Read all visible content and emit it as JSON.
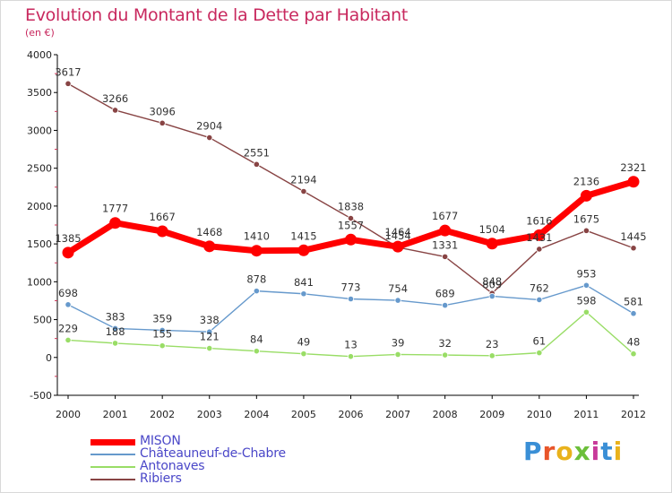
{
  "header": {
    "title": "Evolution du Montant de la Dette par Habitant",
    "subtitle": "(en €)"
  },
  "logo": {
    "text": "Proxiti",
    "letter_colors": [
      "#3a8fd6",
      "#e8552a",
      "#e9b21c",
      "#6cbf3a",
      "#c83a9a",
      "#3a8fd6",
      "#e9b21c"
    ]
  },
  "chart_data": {
    "type": "line",
    "title": "Evolution du Montant de la Dette par Habitant",
    "subtitle": "(en €)",
    "xlabel": "",
    "ylabel": "",
    "x": [
      "2000",
      "2001",
      "2002",
      "2003",
      "2004",
      "2005",
      "2006",
      "2007",
      "2008",
      "2009",
      "2010",
      "2011",
      "2012"
    ],
    "ylim": [
      -500,
      4000
    ],
    "yticks": [
      -500,
      0,
      500,
      1000,
      1500,
      2000,
      2500,
      3000,
      3500,
      4000
    ],
    "grid": false,
    "legend_position": "bottom-left",
    "series": [
      {
        "name": "MISON",
        "color": "#ff0000",
        "values": [
          1385,
          1777,
          1667,
          1468,
          1410,
          1415,
          1557,
          1464,
          1677,
          1504,
          1616,
          2136,
          2321
        ],
        "labels": [
          "1385",
          "1777",
          "1667",
          "1468",
          "1410",
          "1415",
          "1557",
          "1464",
          "1677",
          "1504",
          "1616",
          "2136",
          "2321"
        ]
      },
      {
        "name": "Châteauneuf-de-Chabre",
        "color": "#6699cc",
        "values": [
          698,
          383,
          359,
          338,
          878,
          841,
          773,
          754,
          689,
          809,
          762,
          953,
          581
        ],
        "labels": [
          "698",
          "383",
          "359",
          "338",
          "878",
          "841",
          "773",
          "754",
          "689",
          "809",
          "762",
          "953",
          "581"
        ]
      },
      {
        "name": "Antonaves",
        "color": "#99dd66",
        "values": [
          229,
          188,
          155,
          121,
          84,
          49,
          13,
          39,
          32,
          23,
          61,
          598,
          48
        ],
        "labels": [
          "229",
          "188",
          "155",
          "121",
          "84",
          "49",
          "13",
          "39",
          "32",
          "23",
          "61",
          "598",
          "48"
        ]
      },
      {
        "name": "Ribiers",
        "color": "#884444",
        "values": [
          3617,
          3266,
          3096,
          2904,
          2551,
          2194,
          1838,
          1454,
          1331,
          848,
          1431,
          1675,
          1445
        ],
        "labels": [
          "3617",
          "3266",
          "3096",
          "2904",
          "2551",
          "2194",
          "1838",
          "1454",
          "1331",
          "848",
          "1431",
          "1675",
          "1445"
        ]
      }
    ]
  }
}
